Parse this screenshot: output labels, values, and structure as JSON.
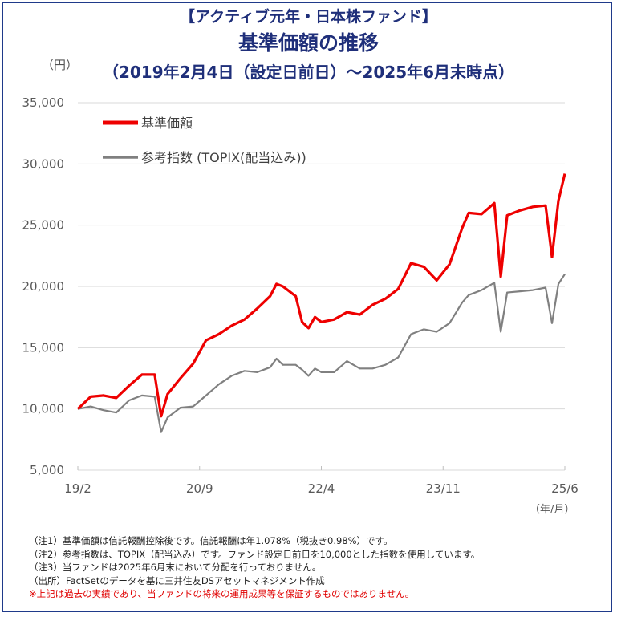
{
  "title": {
    "line1": "【アクティブ元年・日本株ファンド】",
    "line2": "基準価額の推移",
    "line3": "（2019年2月4日（設定日前日）～2025年6月末時点）"
  },
  "y_unit": "（円）",
  "x_unit": "（年/月）",
  "notes": [
    "（注1）基準価額は信託報酬控除後です。信託報酬は年1.078%（税抜き0.98%）です。",
    "（注2）参考指数は、TOPIX（配当込み）です。ファンド設定日前日を10,000とした指数を使用しています。",
    "（注3）当ファンドは2025年6月末において分配を行っておりません。",
    "（出所）FactSetのデータを基に三井住友DSアセットマネジメント作成"
  ],
  "warning": "※上記は過去の実績であり、当ファンドの将来の運用成果等を保証するものではありません。",
  "colors": {
    "nav": "#ee0000",
    "index": "#808080",
    "grid": "#d9d9d9",
    "title": "#1f2f7a"
  },
  "chart_data": {
    "type": "line",
    "title": "基準価額の推移",
    "xlabel": "（年/月）",
    "ylabel": "（円）",
    "ylim": [
      5000,
      35000
    ],
    "yticks": [
      5000,
      10000,
      15000,
      20000,
      25000,
      30000,
      35000
    ],
    "ytick_labels": [
      "5,000",
      "10,000",
      "15,000",
      "20,000",
      "25,000",
      "30,000",
      "35,000"
    ],
    "xlim": [
      "2019-02",
      "2025-06"
    ],
    "xticks": [
      "2019-02",
      "2020-09",
      "2022-04",
      "2023-11",
      "2025-06"
    ],
    "xtick_labels": [
      "19/2",
      "20/9",
      "22/4",
      "23/11",
      "25/6"
    ],
    "grid": true,
    "legend_position": "top-left",
    "x": [
      "2019-02",
      "2019-04",
      "2019-06",
      "2019-08",
      "2019-10",
      "2019-12",
      "2020-02",
      "2020-03",
      "2020-04",
      "2020-06",
      "2020-08",
      "2020-10",
      "2020-12",
      "2021-02",
      "2021-04",
      "2021-06",
      "2021-08",
      "2021-09",
      "2021-10",
      "2021-12",
      "2022-01",
      "2022-02",
      "2022-03",
      "2022-04",
      "2022-06",
      "2022-08",
      "2022-10",
      "2022-12",
      "2023-02",
      "2023-04",
      "2023-06",
      "2023-08",
      "2023-10",
      "2023-12",
      "2024-02",
      "2024-03",
      "2024-05",
      "2024-07",
      "2024-08",
      "2024-09",
      "2024-11",
      "2025-01",
      "2025-03",
      "2025-04",
      "2025-05",
      "2025-06"
    ],
    "series": [
      {
        "name": "基準価額",
        "values": [
          10000,
          11000,
          11100,
          10900,
          11900,
          12800,
          12800,
          9400,
          11200,
          12500,
          13700,
          15600,
          16100,
          16800,
          17300,
          18200,
          19200,
          20200,
          20000,
          19200,
          17100,
          16600,
          17500,
          17100,
          17300,
          17900,
          17700,
          18500,
          19000,
          19800,
          21900,
          21600,
          20500,
          21800,
          24800,
          26000,
          25900,
          26800,
          20800,
          25800,
          26200,
          26500,
          26600,
          22400,
          27000,
          29200
        ]
      },
      {
        "name": "参考指数 (TOPIX(配当込み))",
        "values": [
          10000,
          10200,
          9900,
          9700,
          10700,
          11100,
          11000,
          8100,
          9300,
          10100,
          10200,
          11100,
          12000,
          12700,
          13100,
          13000,
          13400,
          14100,
          13600,
          13600,
          13200,
          12700,
          13300,
          13000,
          13000,
          13900,
          13300,
          13300,
          13600,
          14200,
          16100,
          16500,
          16300,
          17000,
          18700,
          19300,
          19700,
          20300,
          16300,
          19500,
          19600,
          19700,
          19900,
          17000,
          20200,
          21000
        ]
      }
    ]
  }
}
